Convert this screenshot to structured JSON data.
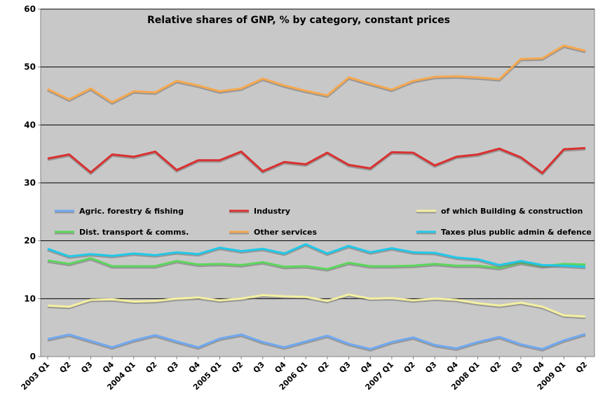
{
  "chart_data": {
    "type": "line",
    "title": "Relative shares of GNP, % by category, constant prices",
    "xlabel": "",
    "ylabel": "",
    "ylim": [
      0,
      60
    ],
    "yticks": [
      0,
      10,
      20,
      30,
      40,
      50,
      60
    ],
    "grid": "horizontal",
    "legend_position": "middle",
    "categories": [
      "2003 Q1",
      "Q2",
      "Q3",
      "Q4",
      "2004 Q1",
      "Q2",
      "Q3",
      "Q4",
      "2005 Q1",
      "Q2",
      "Q3",
      "Q4",
      "2006 Q1",
      "Q2",
      "Q3",
      "Q4",
      "2007 Q1",
      "Q2",
      "Q3",
      "Q4",
      "2008 Q1",
      "Q2",
      "Q3",
      "Q4",
      "2009 Q1",
      "Q2"
    ],
    "series": [
      {
        "name": "Agric. forestry & fishing",
        "color": "#6fa8f0",
        "values": [
          3.0,
          3.8,
          2.7,
          1.6,
          2.8,
          3.7,
          2.6,
          1.6,
          3.1,
          3.8,
          2.5,
          1.6,
          2.6,
          3.6,
          2.2,
          1.3,
          2.5,
          3.3,
          2.0,
          1.4,
          2.5,
          3.4,
          2.1,
          1.3,
          2.8,
          3.9
        ]
      },
      {
        "name": "Industry",
        "color": "#d93030",
        "values": [
          34.2,
          34.9,
          31.8,
          34.9,
          34.5,
          35.4,
          32.2,
          33.9,
          33.9,
          35.4,
          32.0,
          33.6,
          33.2,
          35.2,
          33.1,
          32.5,
          35.3,
          35.2,
          33.0,
          34.5,
          34.9,
          35.9,
          34.4,
          31.7,
          35.8,
          36.0
        ]
      },
      {
        "name": "of which Building & construction",
        "color": "#f5f0a0",
        "values": [
          8.8,
          8.6,
          9.8,
          9.9,
          9.5,
          9.6,
          10.0,
          10.2,
          9.7,
          10.0,
          10.6,
          10.4,
          10.3,
          9.6,
          10.7,
          10.0,
          10.1,
          9.7,
          10.0,
          9.8,
          9.2,
          8.8,
          9.3,
          8.6,
          7.1,
          6.9
        ]
      },
      {
        "name": "Dist. transport & comms.",
        "color": "#5cd65c",
        "values": [
          16.6,
          16.0,
          17.0,
          15.6,
          15.6,
          15.6,
          16.5,
          15.9,
          16.0,
          15.8,
          16.3,
          15.5,
          15.6,
          15.1,
          16.2,
          15.6,
          15.6,
          15.7,
          16.0,
          15.7,
          15.7,
          15.3,
          16.2,
          15.6,
          16.0,
          15.9
        ]
      },
      {
        "name": "Other services",
        "color": "#f5a850",
        "values": [
          46.2,
          44.4,
          46.3,
          43.9,
          45.8,
          45.6,
          47.6,
          46.8,
          45.8,
          46.3,
          48.0,
          46.8,
          45.9,
          45.1,
          48.2,
          47.1,
          46.1,
          47.6,
          48.3,
          48.4,
          48.2,
          47.9,
          51.4,
          51.5,
          53.7,
          52.8
        ]
      },
      {
        "name": "Taxes plus public admin & defence",
        "color": "#20c8e8",
        "values": [
          18.6,
          17.3,
          17.7,
          17.4,
          17.8,
          17.5,
          18.0,
          17.7,
          18.8,
          18.2,
          18.6,
          17.8,
          19.4,
          17.8,
          19.1,
          18.0,
          18.7,
          18.0,
          17.9,
          17.1,
          16.8,
          15.8,
          16.5,
          15.8,
          15.7,
          15.5
        ]
      }
    ]
  }
}
